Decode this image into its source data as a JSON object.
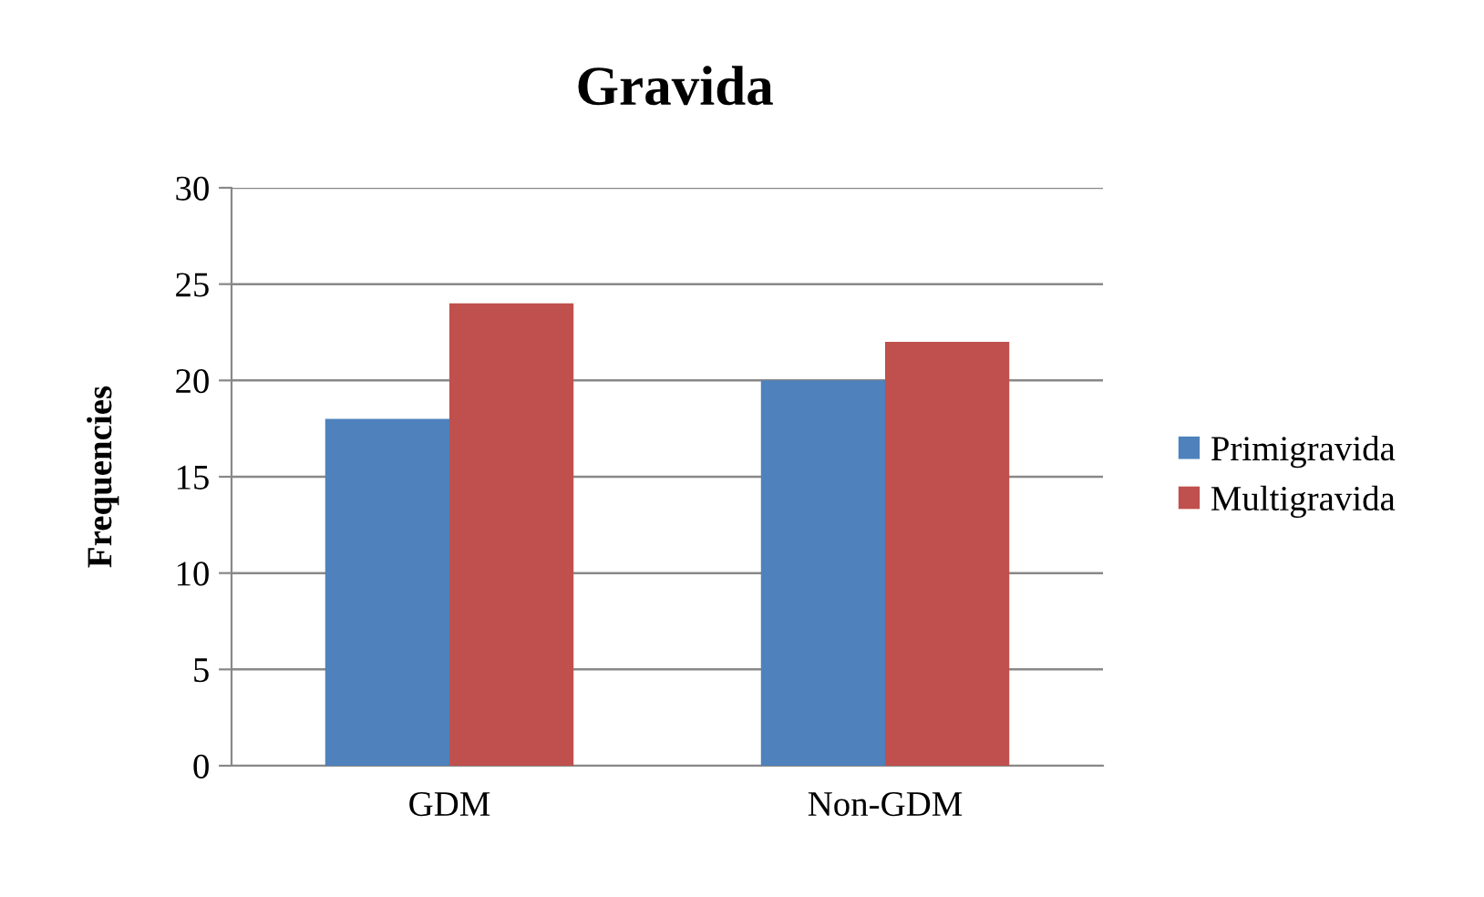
{
  "chart_data": {
    "type": "bar",
    "title": "Gravida",
    "ylabel": "Frequencies",
    "categories": [
      "GDM",
      "Non-GDM"
    ],
    "series": [
      {
        "name": "Primigravida",
        "color": "#4f81bd",
        "values": [
          18,
          20
        ]
      },
      {
        "name": "Multigravida",
        "color": "#c0504d",
        "values": [
          24,
          22
        ]
      }
    ],
    "ylim": [
      0,
      30
    ],
    "yticks": [
      0,
      5,
      10,
      15,
      20,
      25,
      30
    ],
    "grid": "y",
    "legend": "right"
  }
}
